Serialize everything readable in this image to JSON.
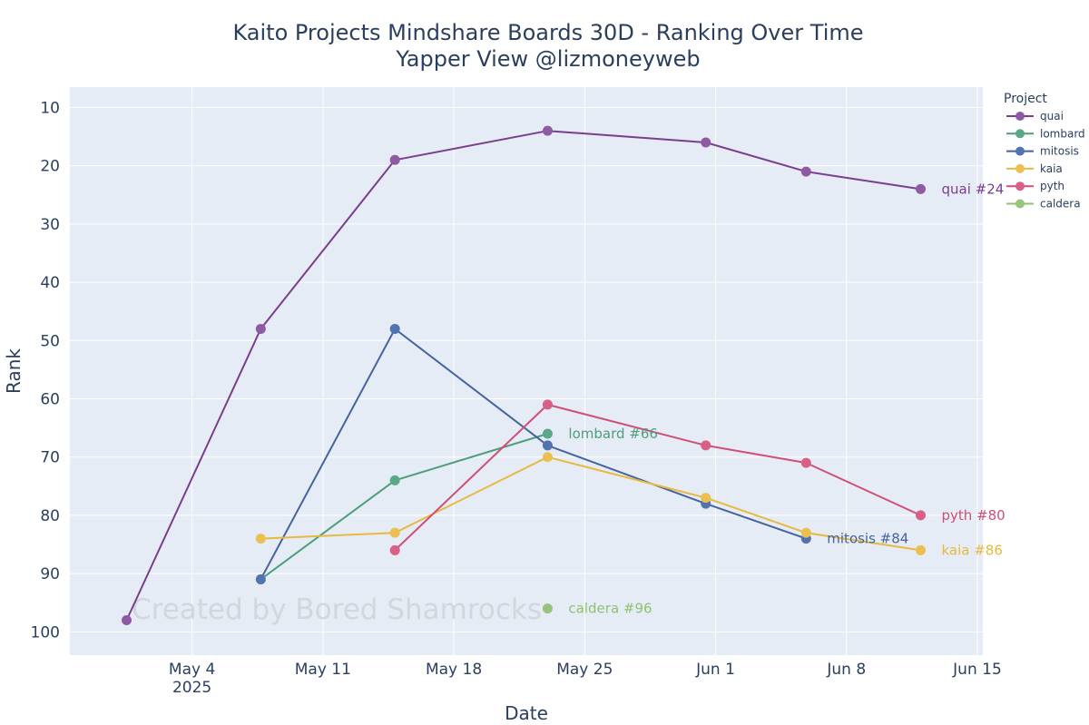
{
  "chart_data": {
    "type": "line",
    "title": "Kaito Projects Mindshare Boards 30D - Ranking Over Time",
    "subtitle": "Yapper View @lizmoneyweb",
    "xlabel": "Date",
    "ylabel": "Rank",
    "y_reversed": true,
    "ylim": [
      104,
      6.5
    ],
    "xlim": [
      -5.2,
      78.5
    ],
    "x_ticks": [
      {
        "x": 6,
        "label": "May 4",
        "sublabel": "2025"
      },
      {
        "x": 18,
        "label": "May 11"
      },
      {
        "x": 30,
        "label": "May 18"
      },
      {
        "x": 42,
        "label": "May 25"
      },
      {
        "x": 54,
        "label": "Jun 1"
      },
      {
        "x": 66,
        "label": "Jun 8"
      },
      {
        "x": 78,
        "label": "Jun 15"
      }
    ],
    "y_ticks": [
      10,
      20,
      30,
      40,
      50,
      60,
      70,
      80,
      90,
      100
    ],
    "legend_title": "Project",
    "watermark": "Created by Bored Shamrocks",
    "series": [
      {
        "name": "quai",
        "color": "#7a3e8e",
        "marker": "#8e5aa3",
        "x": [
          0,
          12.3,
          24.6,
          38.6,
          53.1,
          62.3,
          72.8
        ],
        "y": [
          98,
          48,
          19,
          14,
          16,
          21,
          24
        ],
        "end_label": "quai #24"
      },
      {
        "name": "lombard",
        "color": "#4e9e7c",
        "marker": "#5aa886",
        "x": [
          12.3,
          24.6,
          38.6
        ],
        "y": [
          91,
          74,
          66
        ],
        "end_label": "lombard #66"
      },
      {
        "name": "mitosis",
        "color": "#4563a0",
        "marker": "#5273b0",
        "x": [
          12.3,
          24.6,
          38.6,
          53.1,
          62.3
        ],
        "y": [
          91,
          48,
          68,
          78,
          84
        ],
        "end_label": "mitosis #84"
      },
      {
        "name": "kaia",
        "color": "#e8b940",
        "marker": "#ecc050",
        "x": [
          12.3,
          24.6,
          38.6,
          53.1,
          62.3,
          72.8
        ],
        "y": [
          84,
          83,
          70,
          77,
          83,
          86
        ],
        "end_label": "kaia #86"
      },
      {
        "name": "pyth",
        "color": "#cf4f76",
        "marker": "#d85f85",
        "x": [
          24.6,
          38.6,
          53.1,
          62.3,
          72.8
        ],
        "y": [
          86,
          61,
          68,
          71,
          80
        ],
        "end_label": "pyth #80"
      },
      {
        "name": "caldera",
        "color": "#8ec36e",
        "marker": "#96c47c",
        "x": [
          38.6
        ],
        "y": [
          96
        ],
        "end_label": "caldera #96"
      }
    ]
  }
}
